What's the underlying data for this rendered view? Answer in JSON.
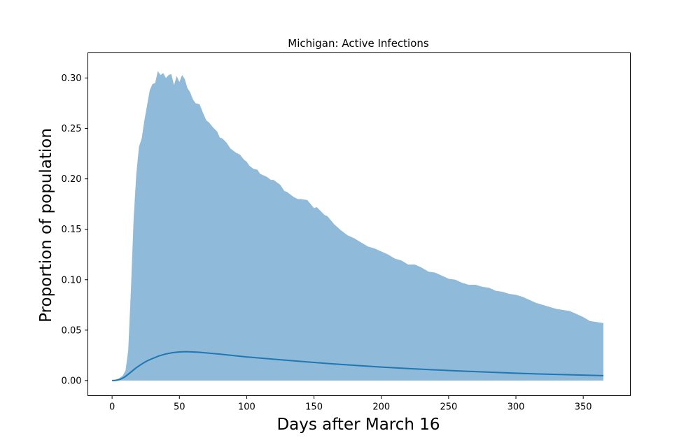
{
  "chart_data": {
    "type": "area",
    "title": "Michigan: Active Infections",
    "xlabel": "Days after March 16",
    "ylabel": "Proportion of population",
    "xlim": [
      -18,
      385
    ],
    "ylim": [
      -0.015,
      0.325
    ],
    "x_ticks": [
      0,
      50,
      100,
      150,
      200,
      250,
      300,
      350
    ],
    "y_ticks": [
      0.0,
      0.05,
      0.1,
      0.15,
      0.2,
      0.25,
      0.3
    ],
    "x_tick_labels": [
      "0",
      "50",
      "100",
      "150",
      "200",
      "250",
      "300",
      "350"
    ],
    "y_tick_labels": [
      "0.00",
      "0.05",
      "0.10",
      "0.15",
      "0.20",
      "0.25",
      "0.30"
    ],
    "grid": false,
    "legend": "none",
    "band_color": "#8fbad9",
    "line_color": "#1f77b4",
    "series": [
      {
        "role": "band-upper",
        "x": [
          0,
          5,
          8,
          10,
          12,
          14,
          16,
          18,
          20,
          22,
          24,
          26,
          28,
          30,
          32,
          34,
          36,
          38,
          40,
          42,
          44,
          46,
          48,
          50,
          52,
          54,
          56,
          58,
          60,
          62,
          65,
          68,
          70,
          72,
          75,
          78,
          80,
          82,
          85,
          88,
          90,
          92,
          95,
          98,
          100,
          102,
          105,
          108,
          110,
          115,
          118,
          120,
          125,
          128,
          130,
          135,
          138,
          140,
          145,
          150,
          152,
          155,
          158,
          160,
          165,
          170,
          175,
          180,
          185,
          190,
          195,
          200,
          205,
          210,
          215,
          220,
          225,
          230,
          235,
          240,
          245,
          250,
          255,
          260,
          265,
          270,
          275,
          280,
          285,
          290,
          295,
          300,
          305,
          310,
          315,
          320,
          325,
          330,
          335,
          340,
          345,
          350,
          355,
          360,
          365
        ],
        "values": [
          0.0,
          0.002,
          0.005,
          0.01,
          0.03,
          0.09,
          0.16,
          0.205,
          0.232,
          0.24,
          0.258,
          0.273,
          0.288,
          0.294,
          0.295,
          0.307,
          0.303,
          0.305,
          0.3,
          0.303,
          0.304,
          0.293,
          0.302,
          0.296,
          0.303,
          0.299,
          0.29,
          0.286,
          0.279,
          0.275,
          0.274,
          0.264,
          0.258,
          0.256,
          0.251,
          0.247,
          0.241,
          0.24,
          0.236,
          0.23,
          0.228,
          0.226,
          0.224,
          0.219,
          0.217,
          0.213,
          0.21,
          0.209,
          0.205,
          0.202,
          0.199,
          0.199,
          0.194,
          0.188,
          0.187,
          0.182,
          0.18,
          0.18,
          0.179,
          0.171,
          0.172,
          0.168,
          0.164,
          0.163,
          0.155,
          0.149,
          0.144,
          0.141,
          0.137,
          0.133,
          0.131,
          0.128,
          0.125,
          0.121,
          0.119,
          0.115,
          0.115,
          0.112,
          0.108,
          0.107,
          0.104,
          0.101,
          0.1,
          0.097,
          0.095,
          0.095,
          0.093,
          0.092,
          0.089,
          0.088,
          0.086,
          0.085,
          0.083,
          0.08,
          0.077,
          0.075,
          0.073,
          0.071,
          0.07,
          0.069,
          0.066,
          0.063,
          0.059,
          0.058,
          0.057
        ]
      },
      {
        "role": "band-lower",
        "x": [
          0,
          365
        ],
        "values": [
          0.0,
          0.0
        ]
      },
      {
        "role": "mean-line",
        "x": [
          0,
          3,
          6,
          9,
          12,
          15,
          18,
          21,
          24,
          27,
          30,
          35,
          40,
          45,
          50,
          55,
          60,
          65,
          70,
          80,
          90,
          100,
          120,
          140,
          160,
          180,
          200,
          220,
          240,
          260,
          280,
          300,
          320,
          340,
          365
        ],
        "values": [
          0.0,
          0.0002,
          0.0012,
          0.0032,
          0.0062,
          0.0095,
          0.0127,
          0.0155,
          0.018,
          0.0201,
          0.0218,
          0.0245,
          0.0264,
          0.0277,
          0.0284,
          0.0286,
          0.0284,
          0.028,
          0.0274,
          0.0262,
          0.0248,
          0.0234,
          0.0212,
          0.019,
          0.0169,
          0.0151,
          0.0134,
          0.0119,
          0.0106,
          0.0094,
          0.0083,
          0.0073,
          0.0064,
          0.0057,
          0.0049
        ]
      }
    ]
  }
}
